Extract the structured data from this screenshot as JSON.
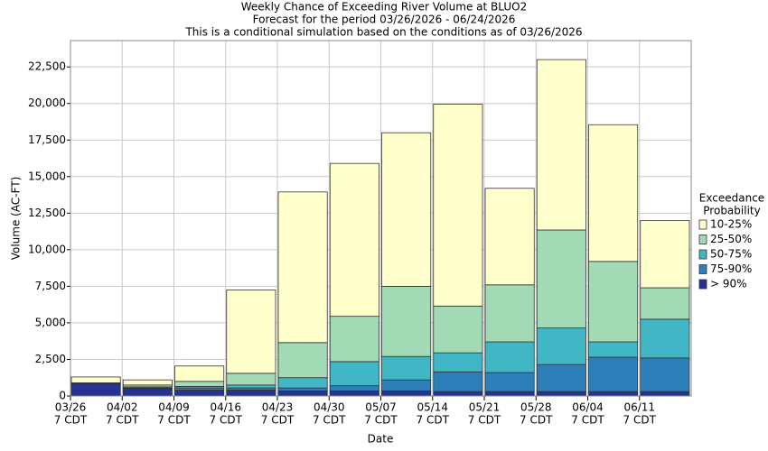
{
  "chart_data": {
    "type": "stacked_bar",
    "title": "Weekly Chance of Exceeding River Volume at BLUO2",
    "subtitle": "Forecast for the period 03/26/2026 - 06/24/2026",
    "note": "This is a conditional simulation based on the conditions as of 03/26/2026",
    "x_label": "Date",
    "y_label": "Volume (AC-FT)",
    "categories": [
      "03/26",
      "04/02",
      "04/09",
      "04/16",
      "04/23",
      "04/30",
      "05/07",
      "05/14",
      "05/21",
      "05/28",
      "06/04",
      "06/11"
    ],
    "category_sublabel": "7 CDT",
    "legend_title": [
      "Exceedance",
      "Probability"
    ],
    "legend_position": "right",
    "series": [
      {
        "name": "> 90%",
        "color": "#253494",
        "values": [
          820,
          500,
          400,
          400,
          350,
          350,
          350,
          300,
          300,
          300,
          300,
          300
        ]
      },
      {
        "name": "75-90%",
        "color": "#2c7fb8",
        "values": [
          20,
          50,
          150,
          150,
          200,
          350,
          750,
          1350,
          1300,
          1850,
          2350,
          2300
        ]
      },
      {
        "name": "50-75%",
        "color": "#41b6c4",
        "values": [
          20,
          70,
          100,
          200,
          700,
          1650,
          1600,
          1300,
          2100,
          2500,
          1050,
          2650
        ]
      },
      {
        "name": "25-50%",
        "color": "#a1dab4",
        "values": [
          40,
          130,
          350,
          800,
          2400,
          3100,
          4800,
          3200,
          3900,
          6700,
          5500,
          2150
        ]
      },
      {
        "name": "10-25%",
        "color": "#ffffcc",
        "values": [
          400,
          350,
          1050,
          5700,
          10300,
          10450,
          10500,
          13800,
          6600,
          11650,
          9350,
          4600
        ]
      }
    ],
    "ylim": [
      0,
      24300
    ],
    "yticks": [
      0,
      {
        "value": 2500,
        "label": "2,500"
      },
      {
        "value": 5000,
        "label": "5,000"
      },
      {
        "value": 7500,
        "label": "7,500"
      },
      {
        "value": 10000,
        "label": "10,000"
      },
      {
        "value": 12500,
        "label": "12,500"
      },
      {
        "value": 15000,
        "label": "15,000"
      },
      {
        "value": 17500,
        "label": "17,500"
      },
      {
        "value": 20000,
        "label": "20,000"
      },
      {
        "value": 22500,
        "label": "22,500"
      }
    ],
    "grid": true
  }
}
